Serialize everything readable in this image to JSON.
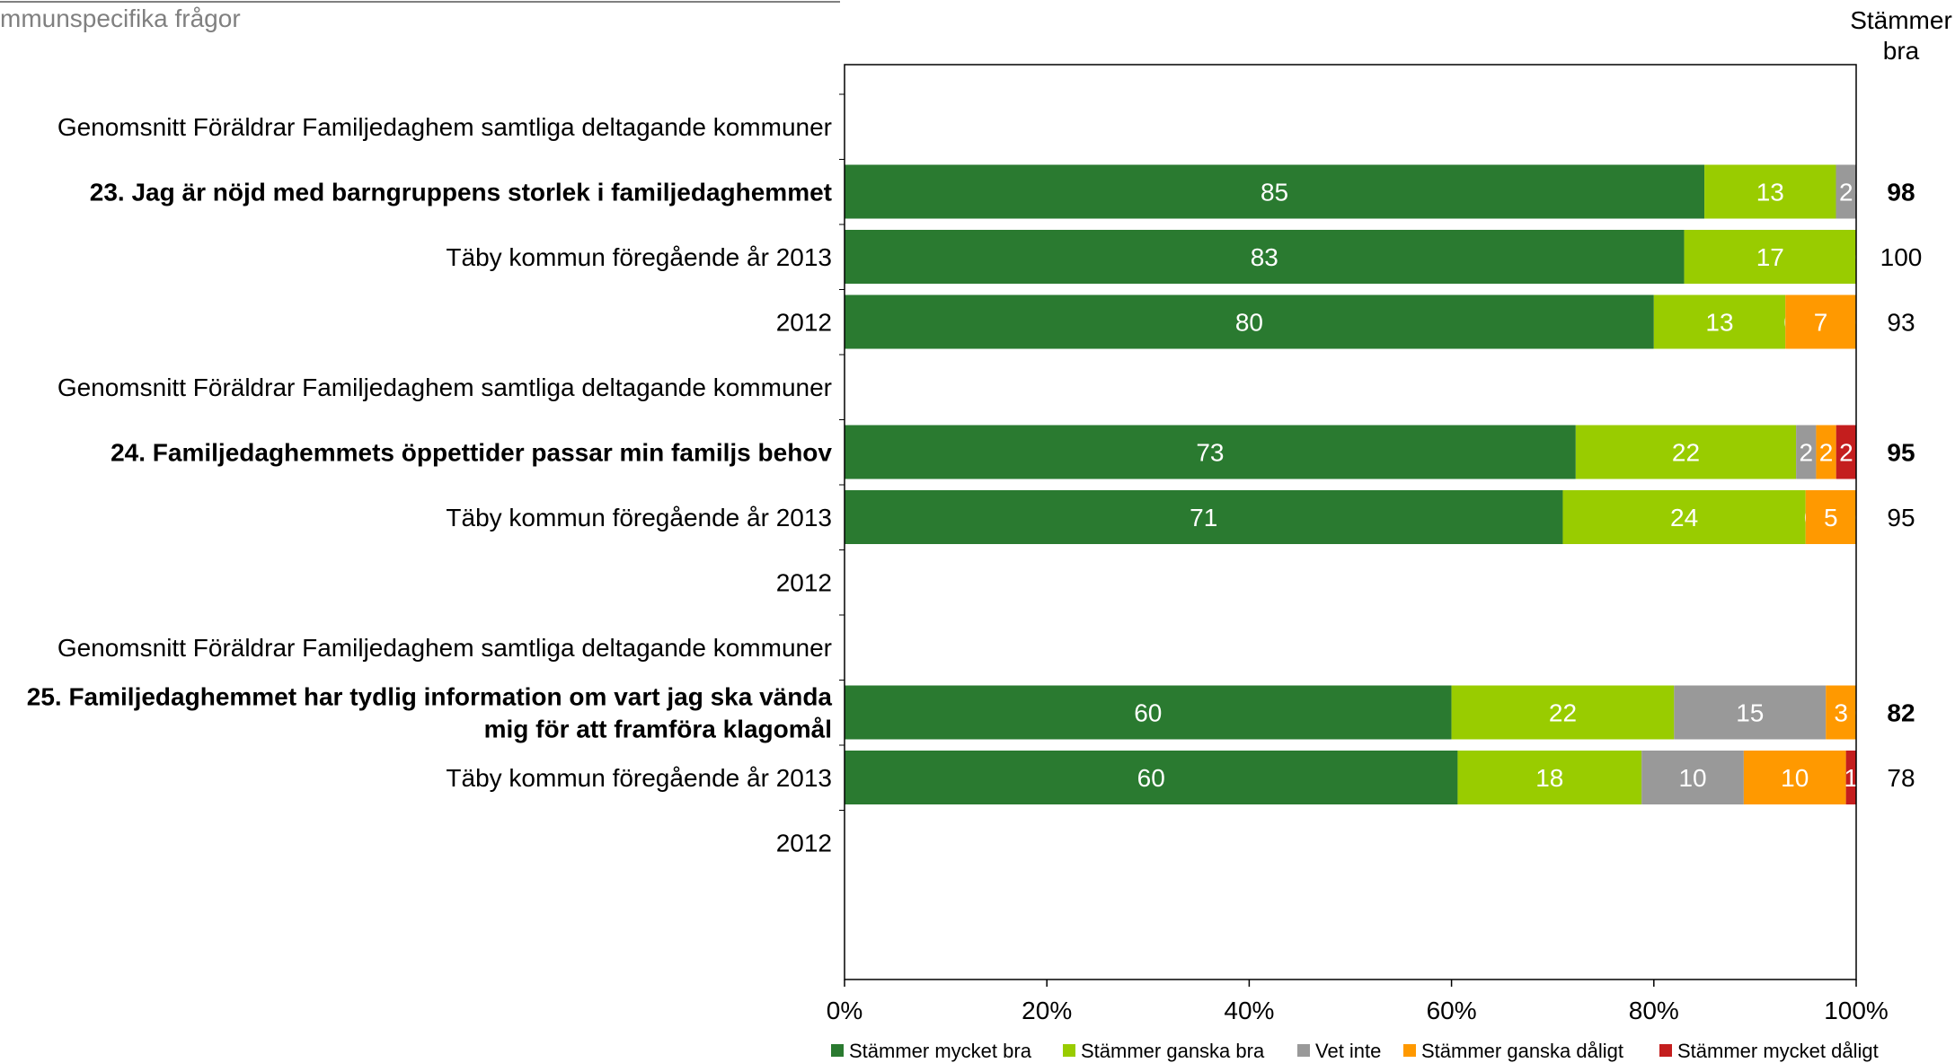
{
  "header": {
    "text": "mmunspecifika frågor"
  },
  "chart_data": {
    "type": "bar",
    "orientation": "horizontal",
    "stacked": true,
    "xlim": [
      0,
      100
    ],
    "x_ticks": [
      "0%",
      "20%",
      "40%",
      "60%",
      "80%",
      "100%"
    ],
    "total_header": [
      "Stämmer",
      "bra"
    ],
    "colors": {
      "Stämmer mycket bra": "#2a7a30",
      "Stämmer ganska bra": "#99cc00",
      "Vet inte": "#999999",
      "Stämmer ganska dåligt": "#ff9900",
      "Stämmer mycket dåligt": "#c41e1e"
    },
    "legend": [
      "Stämmer mycket bra",
      "Stämmer ganska bra",
      "Vet inte",
      "Stämmer ganska dåligt",
      "Stämmer mycket dåligt"
    ],
    "legend_position": "bottom",
    "rows": [
      {
        "label": [
          "Genomsnitt Föräldrar Familjedaghem samtliga deltagande kommuner"
        ],
        "bold": false,
        "values": null,
        "total": ""
      },
      {
        "label": [
          "23. Jag är nöjd med barngruppens storlek i familjedaghemmet"
        ],
        "bold": true,
        "values": [
          85,
          13,
          2,
          0,
          0
        ],
        "labels": [
          "85",
          "13",
          "2",
          "0",
          ""
        ],
        "total": "98"
      },
      {
        "label": [
          "Täby kommun föregående år 2013"
        ],
        "bold": false,
        "values": [
          83,
          17,
          0,
          0,
          0
        ],
        "labels": [
          "83",
          "17",
          "0",
          "",
          ""
        ],
        "total": "100"
      },
      {
        "label": [
          "2012"
        ],
        "bold": false,
        "values": [
          80,
          13,
          0,
          7,
          0
        ],
        "labels": [
          "80",
          "13",
          "0",
          "7",
          "0"
        ],
        "total": "93"
      },
      {
        "label": [
          "Genomsnitt Föräldrar Familjedaghem samtliga deltagande kommuner"
        ],
        "bold": false,
        "values": null,
        "total": ""
      },
      {
        "label": [
          "24. Familjedaghemmets öppettider passar min familjs behov"
        ],
        "bold": true,
        "values": [
          73,
          22,
          2,
          2,
          2
        ],
        "labels": [
          "73",
          "22",
          "2",
          "2",
          "2"
        ],
        "total": "95"
      },
      {
        "label": [
          "Täby kommun föregående år 2013"
        ],
        "bold": false,
        "values": [
          71,
          24,
          0,
          5,
          0
        ],
        "labels": [
          "71",
          "24",
          "0",
          "5",
          "0"
        ],
        "total": "95"
      },
      {
        "label": [
          "2012"
        ],
        "bold": false,
        "values": null,
        "total": ""
      },
      {
        "label": [
          "Genomsnitt Föräldrar Familjedaghem samtliga deltagande kommuner"
        ],
        "bold": false,
        "values": null,
        "total": ""
      },
      {
        "label": [
          "25. Familjedaghemmet har tydlig information om vart jag ska vända",
          "mig för att framföra klagomål"
        ],
        "bold": true,
        "values": [
          60,
          22,
          15,
          3,
          0
        ],
        "labels": [
          "60",
          "22",
          "15",
          "3",
          "0"
        ],
        "total": "82"
      },
      {
        "label": [
          "Täby kommun föregående år 2013"
        ],
        "bold": false,
        "values": [
          60,
          18,
          10,
          10,
          1
        ],
        "labels": [
          "60",
          "18",
          "10",
          "10",
          "1"
        ],
        "total": "78"
      },
      {
        "label": [
          "2012"
        ],
        "bold": false,
        "values": null,
        "total": ""
      }
    ]
  }
}
